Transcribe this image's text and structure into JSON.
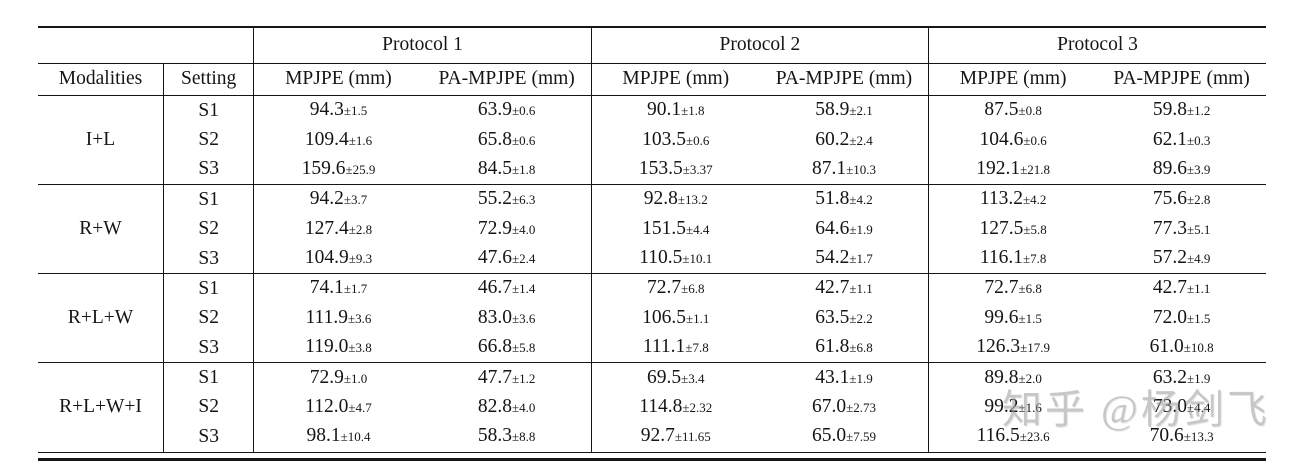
{
  "table": {
    "protocols": [
      "Protocol 1",
      "Protocol 2",
      "Protocol 3"
    ],
    "header": {
      "modalities": "Modalities",
      "setting": "Setting",
      "mpjpe": "MPJPE (mm)",
      "pa_mpjpe": "PA-MPJPE (mm)"
    },
    "groups": [
      {
        "modality": "I+L",
        "rows": [
          {
            "setting": "S1",
            "cells": [
              {
                "m": "94.3",
                "e": "±1.5"
              },
              {
                "m": "63.9",
                "e": "±0.6"
              },
              {
                "m": "90.1",
                "e": "±1.8"
              },
              {
                "m": "58.9",
                "e": "±2.1"
              },
              {
                "m": "87.5",
                "e": "±0.8"
              },
              {
                "m": "59.8",
                "e": "±1.2"
              }
            ]
          },
          {
            "setting": "S2",
            "cells": [
              {
                "m": "109.4",
                "e": "±1.6"
              },
              {
                "m": "65.8",
                "e": "±0.6"
              },
              {
                "m": "103.5",
                "e": "±0.6"
              },
              {
                "m": "60.2",
                "e": "±2.4"
              },
              {
                "m": "104.6",
                "e": "±0.6"
              },
              {
                "m": "62.1",
                "e": "±0.3"
              }
            ]
          },
          {
            "setting": "S3",
            "cells": [
              {
                "m": "159.6",
                "e": "±25.9"
              },
              {
                "m": "84.5",
                "e": "±1.8"
              },
              {
                "m": "153.5",
                "e": "±3.37"
              },
              {
                "m": "87.1",
                "e": "±10.3"
              },
              {
                "m": "192.1",
                "e": "±21.8"
              },
              {
                "m": "89.6",
                "e": "±3.9"
              }
            ]
          }
        ]
      },
      {
        "modality": "R+W",
        "rows": [
          {
            "setting": "S1",
            "cells": [
              {
                "m": "94.2",
                "e": "±3.7"
              },
              {
                "m": "55.2",
                "e": "±6.3"
              },
              {
                "m": "92.8",
                "e": "±13.2"
              },
              {
                "m": "51.8",
                "e": "±4.2"
              },
              {
                "m": "113.2",
                "e": "±4.2"
              },
              {
                "m": "75.6",
                "e": "±2.8"
              }
            ]
          },
          {
            "setting": "S2",
            "cells": [
              {
                "m": "127.4",
                "e": "±2.8"
              },
              {
                "m": "72.9",
                "e": "±4.0"
              },
              {
                "m": "151.5",
                "e": "±4.4"
              },
              {
                "m": "64.6",
                "e": "±1.9"
              },
              {
                "m": "127.5",
                "e": "±5.8"
              },
              {
                "m": "77.3",
                "e": "±5.1"
              }
            ]
          },
          {
            "setting": "S3",
            "cells": [
              {
                "m": "104.9",
                "e": "±9.3"
              },
              {
                "m": "47.6",
                "e": "±2.4"
              },
              {
                "m": "110.5",
                "e": "±10.1"
              },
              {
                "m": "54.2",
                "e": "±1.7"
              },
              {
                "m": "116.1",
                "e": "±7.8"
              },
              {
                "m": "57.2",
                "e": "±4.9"
              }
            ]
          }
        ]
      },
      {
        "modality": "R+L+W",
        "rows": [
          {
            "setting": "S1",
            "cells": [
              {
                "m": "74.1",
                "e": "±1.7"
              },
              {
                "m": "46.7",
                "e": "±1.4"
              },
              {
                "m": "72.7",
                "e": "±6.8"
              },
              {
                "m": "42.7",
                "e": "±1.1"
              },
              {
                "m": "72.7",
                "e": "±6.8"
              },
              {
                "m": "42.7",
                "e": "±1.1"
              }
            ]
          },
          {
            "setting": "S2",
            "cells": [
              {
                "m": "111.9",
                "e": "±3.6"
              },
              {
                "m": "83.0",
                "e": "±3.6"
              },
              {
                "m": "106.5",
                "e": "±1.1"
              },
              {
                "m": "63.5",
                "e": "±2.2"
              },
              {
                "m": "99.6",
                "e": "±1.5"
              },
              {
                "m": "72.0",
                "e": "±1.5"
              }
            ]
          },
          {
            "setting": "S3",
            "cells": [
              {
                "m": "119.0",
                "e": "±3.8"
              },
              {
                "m": "66.8",
                "e": "±5.8"
              },
              {
                "m": "111.1",
                "e": "±7.8"
              },
              {
                "m": "61.8",
                "e": "±6.8"
              },
              {
                "m": "126.3",
                "e": "±17.9"
              },
              {
                "m": "61.0",
                "e": "±10.8"
              }
            ]
          }
        ]
      },
      {
        "modality": "R+L+W+I",
        "rows": [
          {
            "setting": "S1",
            "cells": [
              {
                "m": "72.9",
                "e": "±1.0"
              },
              {
                "m": "47.7",
                "e": "±1.2"
              },
              {
                "m": "69.5",
                "e": "±3.4"
              },
              {
                "m": "43.1",
                "e": "±1.9"
              },
              {
                "m": "89.8",
                "e": "±2.0"
              },
              {
                "m": "63.2",
                "e": "±1.9"
              }
            ]
          },
          {
            "setting": "S2",
            "cells": [
              {
                "m": "112.0",
                "e": "±4.7"
              },
              {
                "m": "82.8",
                "e": "±4.0"
              },
              {
                "m": "114.8",
                "e": "±2.32"
              },
              {
                "m": "67.0",
                "e": "±2.73"
              },
              {
                "m": "99.2",
                "e": "±1.6"
              },
              {
                "m": "73.0",
                "e": "±4.4"
              }
            ]
          },
          {
            "setting": "S3",
            "cells": [
              {
                "m": "98.1",
                "e": "±10.4"
              },
              {
                "m": "58.3",
                "e": "±8.8"
              },
              {
                "m": "92.7",
                "e": "±11.65"
              },
              {
                "m": "65.0",
                "e": "±7.59"
              },
              {
                "m": "116.5",
                "e": "±23.6"
              },
              {
                "m": "70.6",
                "e": "±13.3"
              }
            ]
          }
        ]
      }
    ]
  },
  "watermark": {
    "text": "知乎 @杨剑飞",
    "color": "#9b9b9b"
  }
}
